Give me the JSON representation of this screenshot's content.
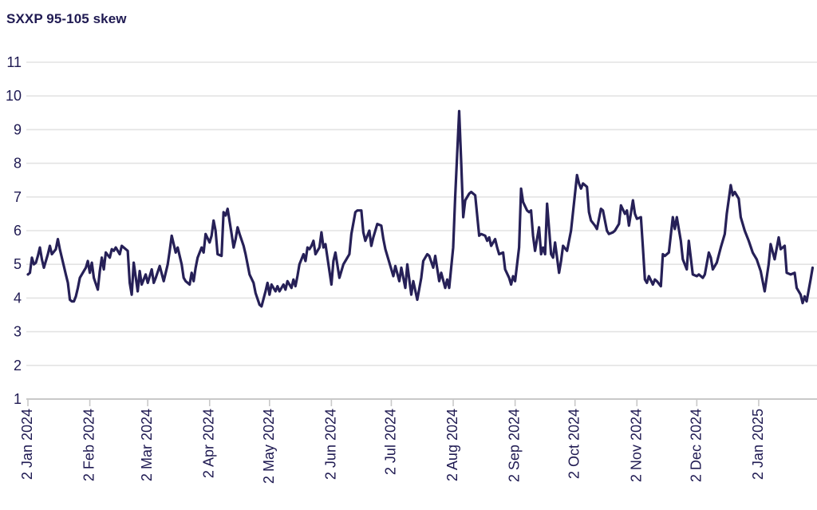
{
  "page": {
    "title": "SXXP 95-105 skew"
  },
  "chart_data": {
    "type": "line",
    "title": "SXXP 95-105 skew",
    "series": [
      {
        "name": "SXXP 95-105 skew"
      }
    ],
    "xlabel": "",
    "ylabel": "",
    "ylim": [
      1,
      11
    ],
    "y_ticks": [
      1,
      2,
      3,
      4,
      5,
      6,
      7,
      8,
      9,
      10,
      11
    ],
    "x_domain_days": [
      0,
      394
    ],
    "x_ticks": [
      {
        "day": 0,
        "label": "2 Jan 2024"
      },
      {
        "day": 31,
        "label": "2 Feb 2024"
      },
      {
        "day": 60,
        "label": "2 Mar 2024"
      },
      {
        "day": 91,
        "label": "2 Apr 2024"
      },
      {
        "day": 121,
        "label": "2 May 2024"
      },
      {
        "day": 152,
        "label": "2 Jun 2024"
      },
      {
        "day": 182,
        "label": "2 Jul 2024"
      },
      {
        "day": 213,
        "label": "2 Aug 2024"
      },
      {
        "day": 244,
        "label": "2 Sep 2024"
      },
      {
        "day": 274,
        "label": "2 Oct 2024"
      },
      {
        "day": 305,
        "label": "2 Nov 2024"
      },
      {
        "day": 335,
        "label": "2 Dec 2024"
      },
      {
        "day": 366,
        "label": "2 Jan 2025"
      }
    ],
    "grid": true,
    "legend": "none",
    "colors": {
      "line": "#262057",
      "text": "#1f1a52",
      "grid": "#e3e3e3",
      "axis": "#c9c9c9"
    },
    "points_format": "[day_offset_from_2_Jan_2024, skew_value]",
    "points": [
      [
        0,
        4.7
      ],
      [
        1,
        4.75
      ],
      [
        2,
        5.2
      ],
      [
        3,
        5.0
      ],
      [
        4,
        5.05
      ],
      [
        5,
        5.25
      ],
      [
        6,
        5.5
      ],
      [
        7,
        5.15
      ],
      [
        8,
        4.9
      ],
      [
        10,
        5.3
      ],
      [
        11,
        5.55
      ],
      [
        12,
        5.3
      ],
      [
        14,
        5.45
      ],
      [
        15,
        5.75
      ],
      [
        16,
        5.45
      ],
      [
        18,
        4.95
      ],
      [
        19,
        4.7
      ],
      [
        20,
        4.45
      ],
      [
        21,
        3.95
      ],
      [
        22,
        3.9
      ],
      [
        23,
        3.9
      ],
      [
        24,
        4.05
      ],
      [
        25,
        4.3
      ],
      [
        26,
        4.6
      ],
      [
        28,
        4.8
      ],
      [
        29,
        4.9
      ],
      [
        30,
        5.1
      ],
      [
        31,
        4.75
      ],
      [
        32,
        5.05
      ],
      [
        33,
        4.6
      ],
      [
        35,
        4.25
      ],
      [
        36,
        4.8
      ],
      [
        37,
        5.2
      ],
      [
        38,
        4.85
      ],
      [
        39,
        5.35
      ],
      [
        41,
        5.2
      ],
      [
        42,
        5.45
      ],
      [
        43,
        5.4
      ],
      [
        44,
        5.5
      ],
      [
        46,
        5.3
      ],
      [
        47,
        5.55
      ],
      [
        48,
        5.5
      ],
      [
        49,
        5.45
      ],
      [
        50,
        5.4
      ],
      [
        51,
        4.45
      ],
      [
        52,
        4.1
      ],
      [
        53,
        5.05
      ],
      [
        55,
        4.2
      ],
      [
        56,
        4.8
      ],
      [
        57,
        4.4
      ],
      [
        59,
        4.7
      ],
      [
        60,
        4.45
      ],
      [
        62,
        4.85
      ],
      [
        63,
        4.45
      ],
      [
        64,
        4.6
      ],
      [
        66,
        4.95
      ],
      [
        68,
        4.5
      ],
      [
        70,
        5.0
      ],
      [
        71,
        5.4
      ],
      [
        72,
        5.85
      ],
      [
        74,
        5.35
      ],
      [
        75,
        5.5
      ],
      [
        77,
        5.0
      ],
      [
        78,
        4.6
      ],
      [
        79,
        4.5
      ],
      [
        81,
        4.4
      ],
      [
        82,
        4.75
      ],
      [
        83,
        4.5
      ],
      [
        84,
        4.9
      ],
      [
        85,
        5.2
      ],
      [
        87,
        5.5
      ],
      [
        88,
        5.35
      ],
      [
        89,
        5.9
      ],
      [
        91,
        5.65
      ],
      [
        92,
        5.85
      ],
      [
        93,
        6.3
      ],
      [
        94,
        6.0
      ],
      [
        95,
        5.3
      ],
      [
        97,
        5.25
      ],
      [
        98,
        6.55
      ],
      [
        99,
        6.45
      ],
      [
        100,
        6.65
      ],
      [
        102,
        5.9
      ],
      [
        103,
        5.5
      ],
      [
        104,
        5.75
      ],
      [
        105,
        6.1
      ],
      [
        106,
        5.9
      ],
      [
        108,
        5.55
      ],
      [
        109,
        5.3
      ],
      [
        110,
        5.0
      ],
      [
        111,
        4.7
      ],
      [
        113,
        4.45
      ],
      [
        114,
        4.15
      ],
      [
        116,
        3.8
      ],
      [
        117,
        3.75
      ],
      [
        119,
        4.2
      ],
      [
        120,
        4.45
      ],
      [
        121,
        4.1
      ],
      [
        122,
        4.4
      ],
      [
        124,
        4.2
      ],
      [
        125,
        4.35
      ],
      [
        126,
        4.2
      ],
      [
        128,
        4.4
      ],
      [
        129,
        4.25
      ],
      [
        130,
        4.5
      ],
      [
        132,
        4.3
      ],
      [
        133,
        4.55
      ],
      [
        134,
        4.35
      ],
      [
        135,
        4.65
      ],
      [
        136,
        5.0
      ],
      [
        138,
        5.3
      ],
      [
        139,
        5.1
      ],
      [
        140,
        5.5
      ],
      [
        141,
        5.45
      ],
      [
        142,
        5.55
      ],
      [
        143,
        5.7
      ],
      [
        144,
        5.3
      ],
      [
        146,
        5.5
      ],
      [
        147,
        5.95
      ],
      [
        148,
        5.5
      ],
      [
        149,
        5.6
      ],
      [
        150,
        5.2
      ],
      [
        152,
        4.4
      ],
      [
        153,
        5.1
      ],
      [
        154,
        5.35
      ],
      [
        156,
        4.6
      ],
      [
        158,
        5.0
      ],
      [
        159,
        5.1
      ],
      [
        161,
        5.3
      ],
      [
        162,
        5.9
      ],
      [
        164,
        6.55
      ],
      [
        165,
        6.6
      ],
      [
        167,
        6.6
      ],
      [
        168,
        5.95
      ],
      [
        169,
        5.7
      ],
      [
        171,
        6.0
      ],
      [
        172,
        5.55
      ],
      [
        173,
        5.8
      ],
      [
        175,
        6.2
      ],
      [
        177,
        6.15
      ],
      [
        178,
        5.75
      ],
      [
        179,
        5.45
      ],
      [
        181,
        5.05
      ],
      [
        183,
        4.65
      ],
      [
        184,
        4.95
      ],
      [
        186,
        4.5
      ],
      [
        187,
        4.9
      ],
      [
        189,
        4.3
      ],
      [
        190,
        5.0
      ],
      [
        192,
        4.1
      ],
      [
        193,
        4.5
      ],
      [
        195,
        3.95
      ],
      [
        197,
        4.6
      ],
      [
        198,
        5.1
      ],
      [
        200,
        5.3
      ],
      [
        201,
        5.25
      ],
      [
        203,
        4.9
      ],
      [
        204,
        5.25
      ],
      [
        206,
        4.5
      ],
      [
        207,
        4.75
      ],
      [
        209,
        4.3
      ],
      [
        210,
        4.55
      ],
      [
        211,
        4.3
      ],
      [
        213,
        5.5
      ],
      [
        214,
        7.0
      ],
      [
        216,
        9.55
      ],
      [
        217,
        8.0
      ],
      [
        218,
        6.4
      ],
      [
        219,
        6.9
      ],
      [
        221,
        7.1
      ],
      [
        222,
        7.15
      ],
      [
        224,
        7.05
      ],
      [
        226,
        5.85
      ],
      [
        227,
        5.9
      ],
      [
        229,
        5.85
      ],
      [
        230,
        5.7
      ],
      [
        231,
        5.8
      ],
      [
        232,
        5.55
      ],
      [
        234,
        5.75
      ],
      [
        235,
        5.5
      ],
      [
        236,
        5.3
      ],
      [
        238,
        5.35
      ],
      [
        239,
        4.85
      ],
      [
        241,
        4.6
      ],
      [
        242,
        4.4
      ],
      [
        243,
        4.65
      ],
      [
        244,
        4.5
      ],
      [
        246,
        5.5
      ],
      [
        247,
        7.25
      ],
      [
        248,
        6.85
      ],
      [
        250,
        6.6
      ],
      [
        251,
        6.55
      ],
      [
        252,
        6.6
      ],
      [
        253,
        5.85
      ],
      [
        254,
        5.4
      ],
      [
        256,
        6.1
      ],
      [
        257,
        5.3
      ],
      [
        258,
        5.5
      ],
      [
        259,
        5.3
      ],
      [
        260,
        6.8
      ],
      [
        262,
        5.3
      ],
      [
        263,
        5.2
      ],
      [
        264,
        5.65
      ],
      [
        266,
        4.75
      ],
      [
        267,
        5.1
      ],
      [
        268,
        5.55
      ],
      [
        270,
        5.4
      ],
      [
        271,
        5.7
      ],
      [
        272,
        6.0
      ],
      [
        274,
        7.1
      ],
      [
        275,
        7.65
      ],
      [
        276,
        7.4
      ],
      [
        277,
        7.25
      ],
      [
        278,
        7.4
      ],
      [
        280,
        7.3
      ],
      [
        281,
        6.55
      ],
      [
        282,
        6.3
      ],
      [
        284,
        6.15
      ],
      [
        285,
        6.05
      ],
      [
        287,
        6.65
      ],
      [
        288,
        6.6
      ],
      [
        290,
        6.0
      ],
      [
        291,
        5.9
      ],
      [
        293,
        5.95
      ],
      [
        294,
        6.0
      ],
      [
        296,
        6.2
      ],
      [
        297,
        6.75
      ],
      [
        299,
        6.5
      ],
      [
        300,
        6.6
      ],
      [
        301,
        6.15
      ],
      [
        303,
        6.9
      ],
      [
        304,
        6.5
      ],
      [
        305,
        6.35
      ],
      [
        307,
        6.4
      ],
      [
        308,
        5.5
      ],
      [
        309,
        4.55
      ],
      [
        310,
        4.45
      ],
      [
        311,
        4.65
      ],
      [
        313,
        4.4
      ],
      [
        314,
        4.55
      ],
      [
        315,
        4.5
      ],
      [
        317,
        4.35
      ],
      [
        318,
        5.3
      ],
      [
        319,
        5.25
      ],
      [
        321,
        5.35
      ],
      [
        323,
        6.4
      ],
      [
        324,
        6.05
      ],
      [
        325,
        6.4
      ],
      [
        327,
        5.7
      ],
      [
        328,
        5.15
      ],
      [
        330,
        4.85
      ],
      [
        331,
        5.7
      ],
      [
        333,
        4.7
      ],
      [
        335,
        4.65
      ],
      [
        336,
        4.7
      ],
      [
        338,
        4.6
      ],
      [
        339,
        4.7
      ],
      [
        341,
        5.35
      ],
      [
        342,
        5.2
      ],
      [
        343,
        4.85
      ],
      [
        345,
        5.05
      ],
      [
        347,
        5.5
      ],
      [
        349,
        5.9
      ],
      [
        350,
        6.5
      ],
      [
        352,
        7.35
      ],
      [
        353,
        7.05
      ],
      [
        354,
        7.15
      ],
      [
        356,
        6.95
      ],
      [
        357,
        6.4
      ],
      [
        359,
        6.0
      ],
      [
        361,
        5.7
      ],
      [
        363,
        5.35
      ],
      [
        365,
        5.15
      ],
      [
        367,
        4.8
      ],
      [
        369,
        4.2
      ],
      [
        371,
        5.0
      ],
      [
        372,
        5.6
      ],
      [
        374,
        5.15
      ],
      [
        376,
        5.8
      ],
      [
        377,
        5.45
      ],
      [
        379,
        5.55
      ],
      [
        380,
        4.75
      ],
      [
        382,
        4.7
      ],
      [
        384,
        4.75
      ],
      [
        385,
        4.3
      ],
      [
        387,
        4.1
      ],
      [
        388,
        3.85
      ],
      [
        389,
        4.05
      ],
      [
        390,
        3.9
      ],
      [
        392,
        4.55
      ],
      [
        393,
        4.9
      ]
    ]
  }
}
